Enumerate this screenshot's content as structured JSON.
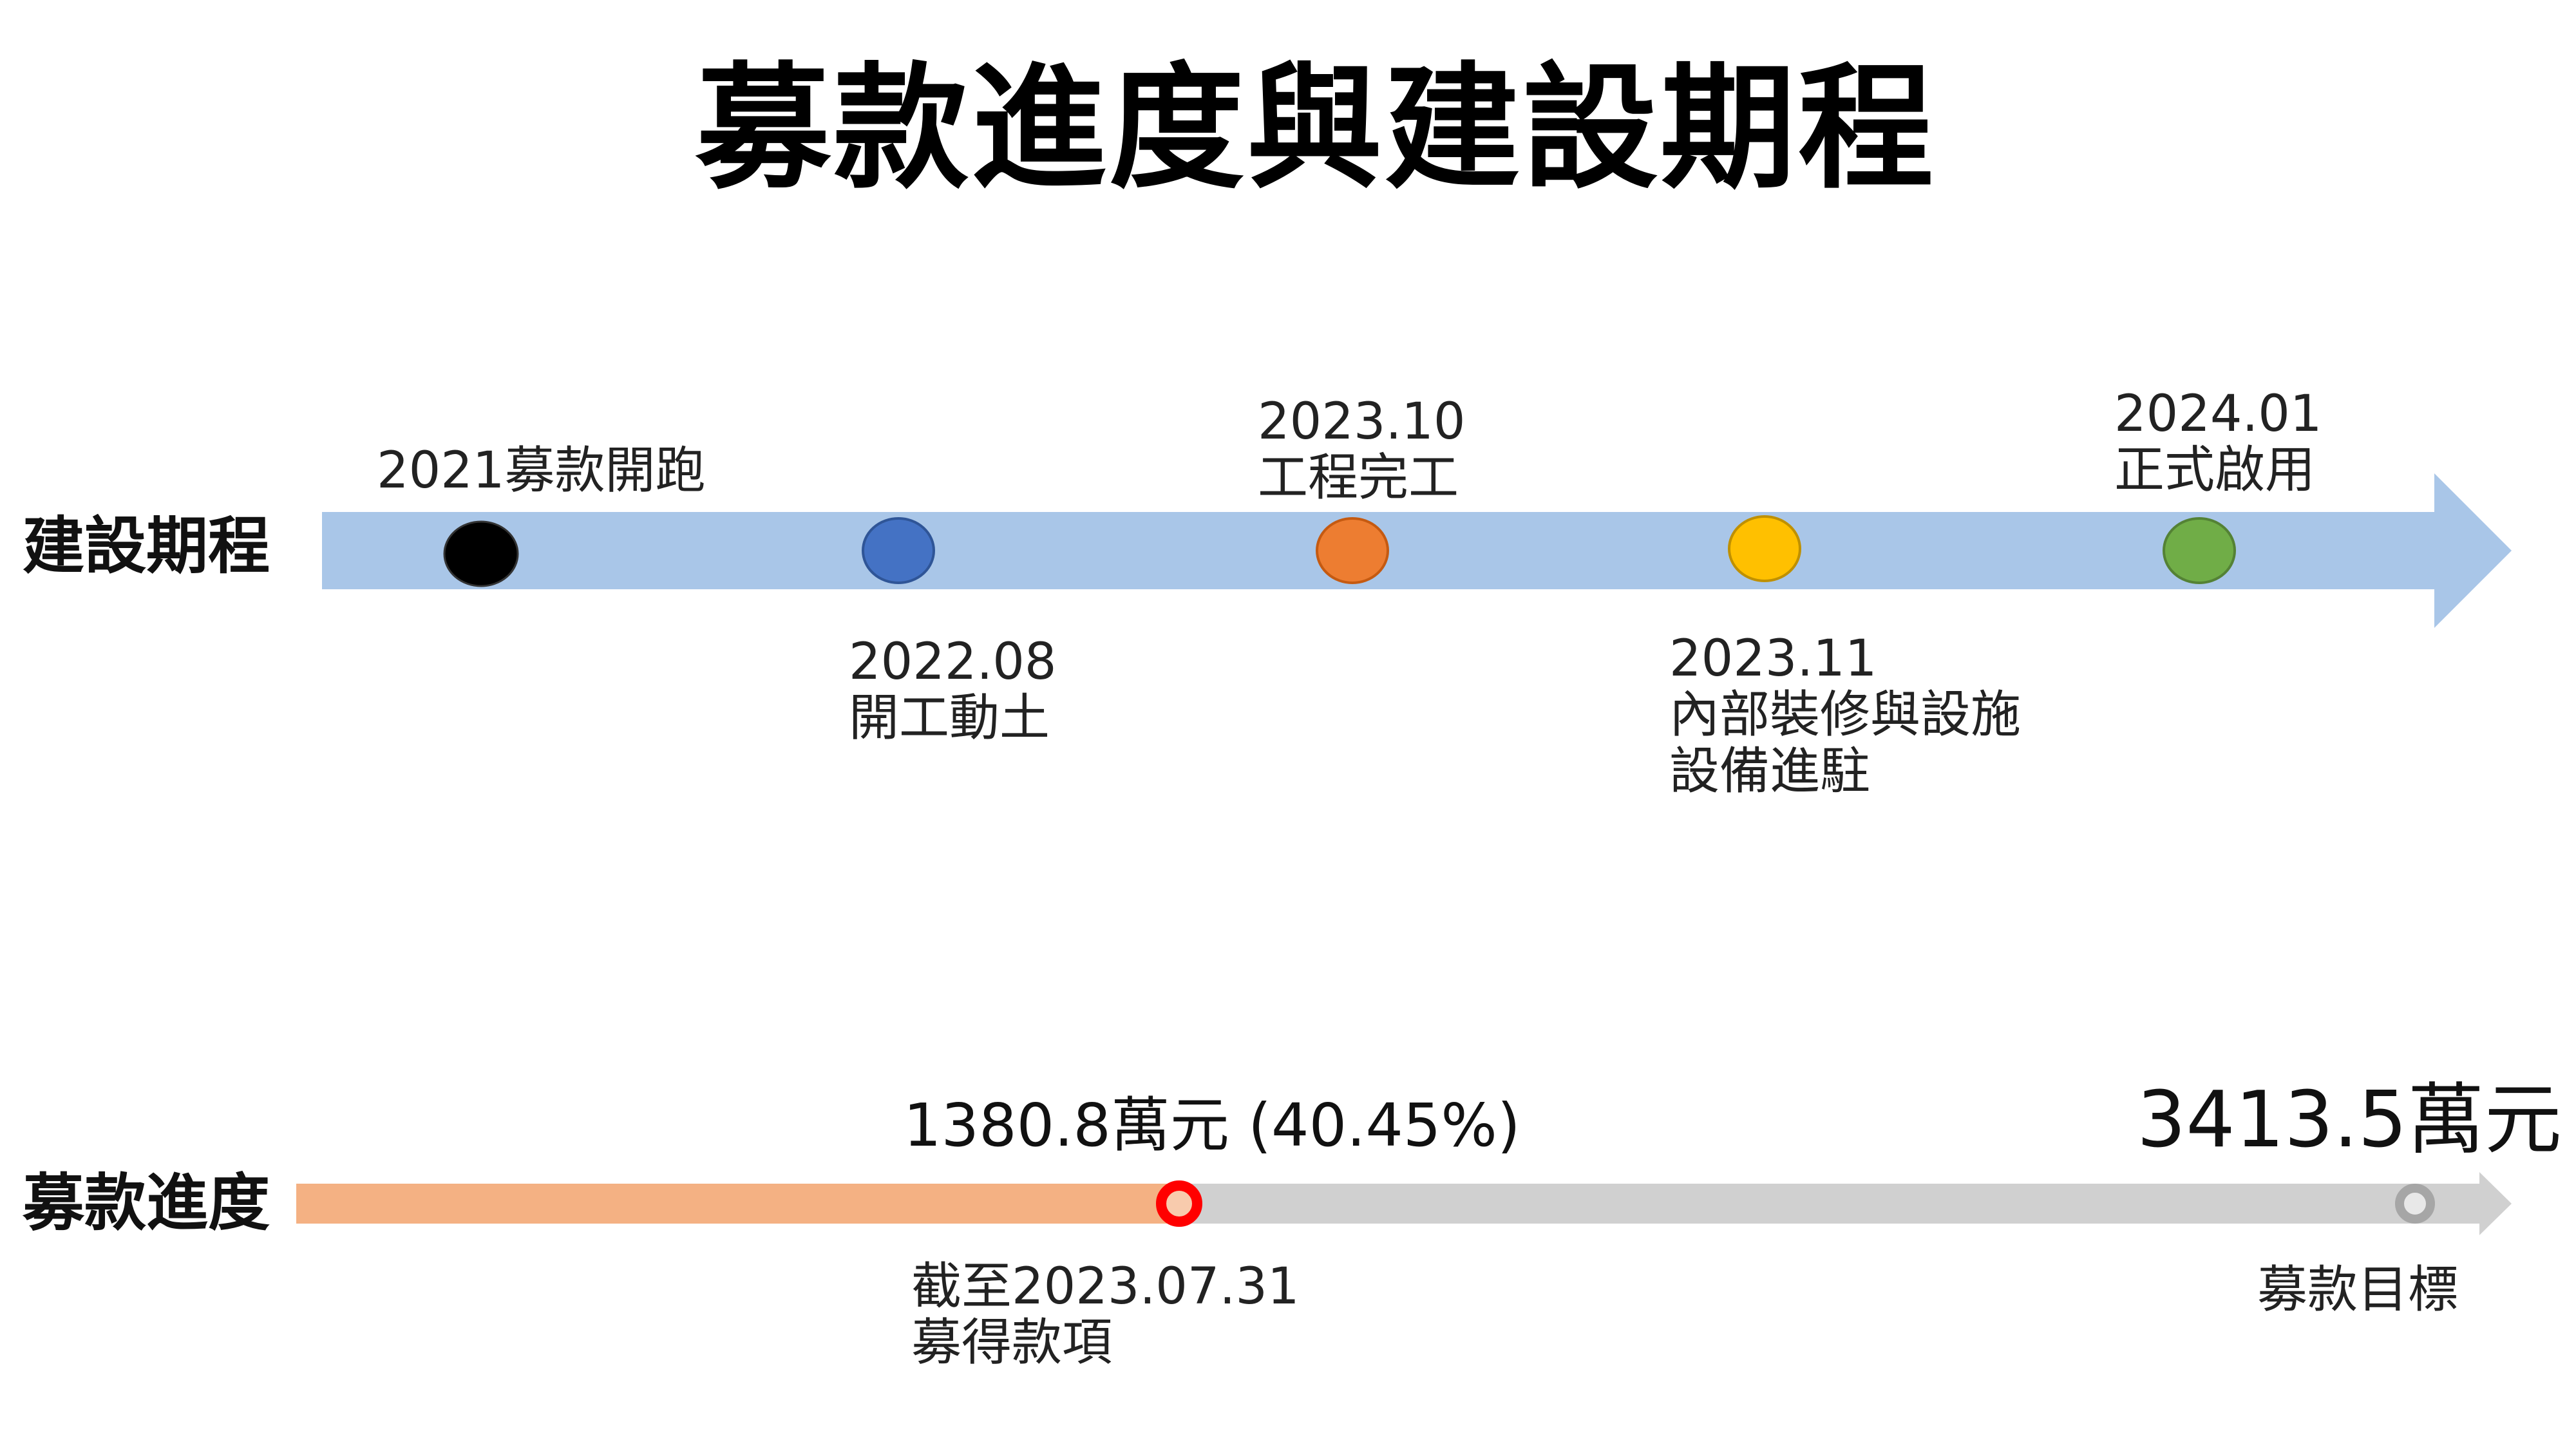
{
  "title": "募款進度與建設期程",
  "timeline": {
    "label": "建設期程",
    "milestones": [
      {
        "text": "2021募款開跑",
        "date": "",
        "color": "#000000"
      },
      {
        "date": "2022.08",
        "text": "開工動土",
        "color": "#4472C4"
      },
      {
        "date": "2023.10",
        "text": "工程完工",
        "color": "#ED7D31"
      },
      {
        "date": "2023.11",
        "text": "內部裝修與設施",
        "text2": "設備進駐",
        "color": "#FFC000"
      },
      {
        "date": "2024.01",
        "text": "正式啟用",
        "color": "#70AD47"
      }
    ],
    "arrow_color": "#A9C6E8"
  },
  "fundraising": {
    "label": "募款進度",
    "raised_label": "1380.8萬元 (40.45%)",
    "progress_fraction": 0.4045,
    "as_of_line1": "截至2023.07.31",
    "as_of_line2": "募得款項",
    "goal_amount": "3413.5萬元",
    "goal_label": "募款目標",
    "raised_color": "#F4B183",
    "remaining_color": "#D0D0D0",
    "marker_color": "#FF0000",
    "goal_marker_color": "#A6A6A6"
  }
}
